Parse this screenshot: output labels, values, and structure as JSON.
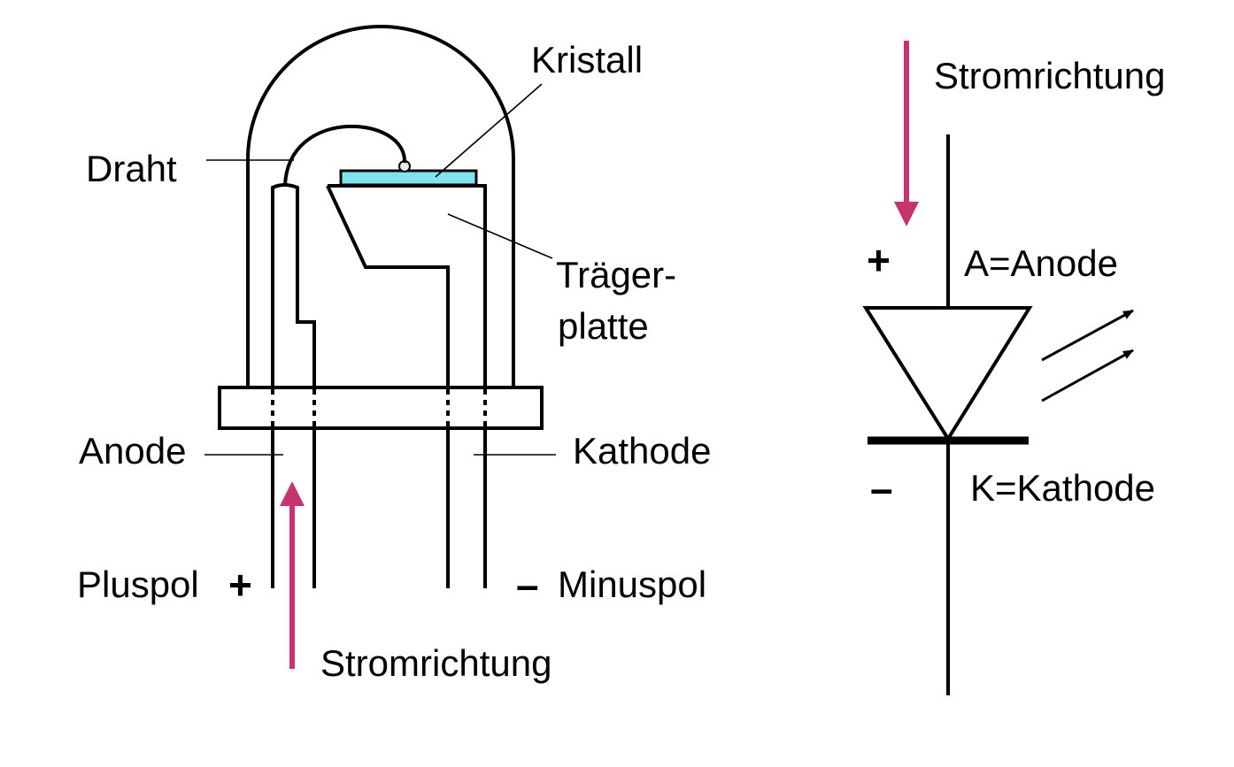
{
  "led_diagram": {
    "labels": {
      "kristall": "Kristall",
      "draht": "Draht",
      "traeger_line1": "Träger-",
      "traeger_line2": "platte",
      "anode": "Anode",
      "kathode": "Kathode",
      "pluspol": "Pluspol",
      "minuspol": "Minuspol",
      "stromrichtung": "Stromrichtung"
    },
    "plus_sign": "+",
    "minus_sign": "–"
  },
  "symbol_diagram": {
    "stromrichtung": "Stromrichtung",
    "anode_label": "A=Anode",
    "kathode_label": "K=Kathode",
    "plus_sign": "+",
    "minus_sign": "–"
  },
  "colors": {
    "current_arrow": "#c8336f",
    "crystal": "#7fe3ef",
    "line": "#000000"
  }
}
